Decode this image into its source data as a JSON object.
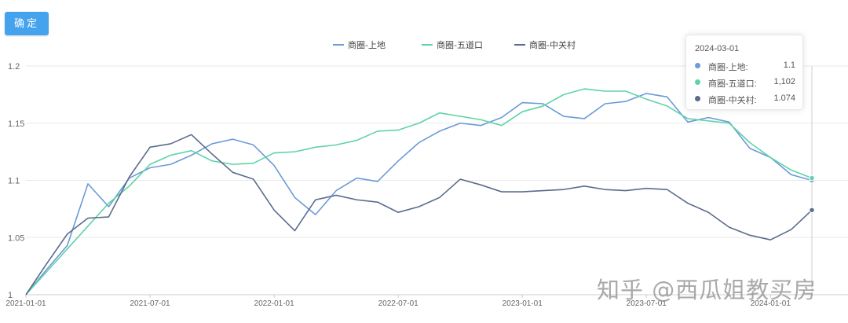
{
  "toolbar": {
    "confirm_label": "确定"
  },
  "tooltip": {
    "date": "2024-03-01",
    "rows": [
      {
        "name": "商圈-上地:",
        "value": "1.1",
        "color": "#6b9bd8"
      },
      {
        "name": "商圈-五道口:",
        "value": "1,102",
        "color": "#5fd3a8"
      },
      {
        "name": "商圈-中关村:",
        "value": "1.074",
        "color": "#5a6c8c"
      }
    ]
  },
  "watermark": "知乎 @西瓜姐教买房",
  "chart_data": {
    "type": "line",
    "xlabel": "",
    "ylabel": "",
    "ylim": [
      1,
      1.2
    ],
    "yticks": [
      "1",
      "1.05",
      "1.1",
      "1.15",
      "1.2"
    ],
    "xtick_labels": [
      "2021-01-01",
      "2021-07-01",
      "2022-01-01",
      "2022-07-01",
      "2023-01-01",
      "2023-07-01",
      "2024-01-01"
    ],
    "legend_position": "top-center",
    "grid": true,
    "x": [
      "2021-01-01",
      "2021-02-01",
      "2021-03-01",
      "2021-04-01",
      "2021-05-01",
      "2021-06-01",
      "2021-07-01",
      "2021-08-01",
      "2021-09-01",
      "2021-10-01",
      "2021-11-01",
      "2021-12-01",
      "2022-01-01",
      "2022-02-01",
      "2022-03-01",
      "2022-04-01",
      "2022-05-01",
      "2022-06-01",
      "2022-07-01",
      "2022-08-01",
      "2022-09-01",
      "2022-10-01",
      "2022-11-01",
      "2022-12-01",
      "2023-01-01",
      "2023-02-01",
      "2023-03-01",
      "2023-04-01",
      "2023-05-01",
      "2023-06-01",
      "2023-07-01",
      "2023-08-01",
      "2023-09-01",
      "2023-10-01",
      "2023-11-01",
      "2023-12-01",
      "2024-01-01",
      "2024-02-01",
      "2024-03-01"
    ],
    "series": [
      {
        "name": "商圈-上地",
        "color": "#6b9bd8",
        "values": [
          1.0,
          1.022,
          1.043,
          1.097,
          1.077,
          1.102,
          1.111,
          1.114,
          1.122,
          1.132,
          1.136,
          1.131,
          1.113,
          1.085,
          1.07,
          1.091,
          1.102,
          1.099,
          1.117,
          1.133,
          1.143,
          1.15,
          1.148,
          1.155,
          1.168,
          1.167,
          1.156,
          1.154,
          1.167,
          1.169,
          1.176,
          1.173,
          1.151,
          1.155,
          1.151,
          1.128,
          1.12,
          1.105,
          1.1
        ]
      },
      {
        "name": "商圈-五道口",
        "color": "#5fd3a8",
        "values": [
          1.0,
          1.02,
          1.04,
          1.06,
          1.08,
          1.095,
          1.114,
          1.122,
          1.126,
          1.117,
          1.114,
          1.115,
          1.124,
          1.125,
          1.129,
          1.131,
          1.135,
          1.143,
          1.144,
          1.15,
          1.159,
          1.156,
          1.153,
          1.148,
          1.16,
          1.165,
          1.175,
          1.18,
          1.178,
          1.178,
          1.171,
          1.165,
          1.154,
          1.152,
          1.15,
          1.133,
          1.12,
          1.109,
          1.102
        ]
      },
      {
        "name": "商圈-中关村",
        "color": "#5a6c8c",
        "values": [
          1.0,
          1.027,
          1.053,
          1.067,
          1.068,
          1.103,
          1.129,
          1.132,
          1.14,
          1.123,
          1.107,
          1.101,
          1.074,
          1.056,
          1.083,
          1.087,
          1.083,
          1.081,
          1.072,
          1.077,
          1.085,
          1.101,
          1.096,
          1.09,
          1.09,
          1.091,
          1.092,
          1.095,
          1.092,
          1.091,
          1.093,
          1.092,
          1.08,
          1.072,
          1.059,
          1.052,
          1.048,
          1.057,
          1.074
        ]
      }
    ]
  }
}
